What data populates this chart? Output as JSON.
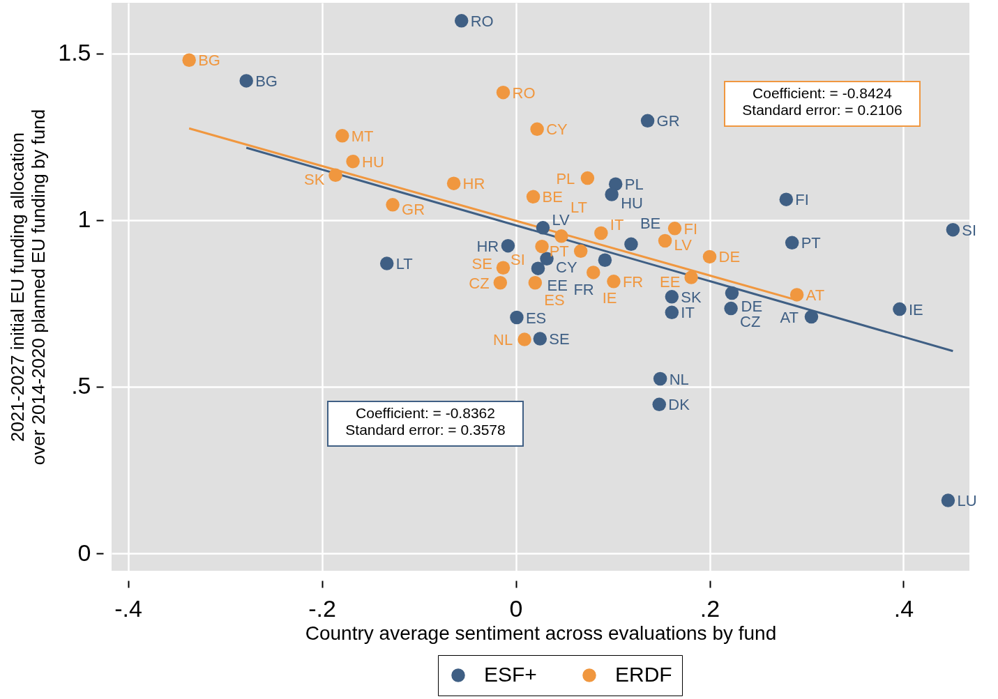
{
  "chart_data": {
    "type": "scatter",
    "xlabel": "Country average sentiment across evaluations by fund",
    "ylabel": "2021-2027 initial EU funding allocation\nover 2014-2020 planned EU funding by fund",
    "xlim": [
      -0.417,
      0.468
    ],
    "ylim": [
      -0.052,
      1.652
    ],
    "xticks": [
      {
        "value": -0.4,
        "label": "-.4"
      },
      {
        "value": -0.2,
        "label": "-.2"
      },
      {
        "value": 0,
        "label": "0"
      },
      {
        "value": 0.2,
        "label": ".2"
      },
      {
        "value": 0.4,
        "label": ".4"
      }
    ],
    "yticks": [
      {
        "value": 0,
        "label": "0"
      },
      {
        "value": 0.5,
        "label": ".5"
      },
      {
        "value": 1,
        "label": "1"
      },
      {
        "value": 1.5,
        "label": "1.5"
      }
    ],
    "grid": true,
    "legend": "bottom",
    "marker": "circle",
    "annotations": [
      "Coefficient: = -0.8424\nStandard error: = 0.2106",
      "Coefficient: = -0.8362\nStandard error: = 0.3578"
    ],
    "series": [
      {
        "name": "ESF+",
        "color": "#3f5f84",
        "x": [
          -0.056,
          -0.278,
          0.136,
          0.103,
          0.099,
          0.279,
          0.028,
          0.451,
          -0.008,
          0.119,
          0.285,
          -0.133,
          0.032,
          0.023,
          0.092,
          0.161,
          0.223,
          0.396,
          0.222,
          0.161,
          0.305,
          0.001,
          0.025,
          0.149,
          0.148,
          0.446
        ],
        "values": [
          1.598,
          1.418,
          1.298,
          1.108,
          1.077,
          1.062,
          0.977,
          0.971,
          0.923,
          0.928,
          0.932,
          0.87,
          0.884,
          0.855,
          0.88,
          0.77,
          0.781,
          0.733,
          0.735,
          0.723,
          0.71,
          0.708,
          0.644,
          0.524,
          0.447,
          0.159
        ],
        "value_labels": [
          "RO",
          "BG",
          "GR",
          "PL",
          "HU",
          "FI",
          "LV",
          "SI",
          "HR",
          "BE",
          "PT",
          "LT",
          "CY",
          "EE",
          "FR",
          "SK",
          "DE",
          "IE",
          "CZ",
          "IT",
          "AT",
          "ES",
          "SE",
          "NL",
          "DK",
          "LU"
        ]
      },
      {
        "name": "ERDF",
        "color": "#f0973f",
        "x": [
          -0.337,
          -0.013,
          0.022,
          -0.179,
          -0.168,
          -0.186,
          -0.064,
          0.074,
          0.018,
          -0.127,
          0.164,
          0.088,
          0.154,
          0.047,
          0.027,
          0.067,
          0.2,
          -0.013,
          0.08,
          0.181,
          -0.016,
          0.02,
          0.101,
          0.29,
          0.009
        ],
        "values": [
          1.48,
          1.383,
          1.273,
          1.253,
          1.176,
          1.135,
          1.11,
          1.126,
          1.07,
          1.046,
          0.975,
          0.961,
          0.938,
          0.952,
          0.921,
          0.907,
          0.89,
          0.857,
          0.843,
          0.828,
          0.812,
          0.812,
          0.816,
          0.776,
          0.642
        ],
        "value_labels": [
          "BG",
          "RO",
          "CY",
          "MT",
          "HU",
          "SK",
          "HR",
          "PL",
          "BE",
          "GR",
          "FI",
          "IT",
          "LV",
          "LT",
          "SI",
          "PT",
          "DE",
          "SE",
          "IE",
          "EE",
          "CZ",
          "ES",
          "FR",
          "AT",
          "NL"
        ]
      },
      {
        "type": "line",
        "marker": "none",
        "color": "#3f5f84",
        "x": [
          -0.278,
          0.451
        ],
        "values": [
          1.217,
          0.607
        ]
      },
      {
        "type": "line",
        "marker": "none",
        "color": "#f0973f",
        "x": [
          -0.337,
          0.29
        ],
        "values": [
          1.275,
          0.76
        ]
      }
    ]
  }
}
